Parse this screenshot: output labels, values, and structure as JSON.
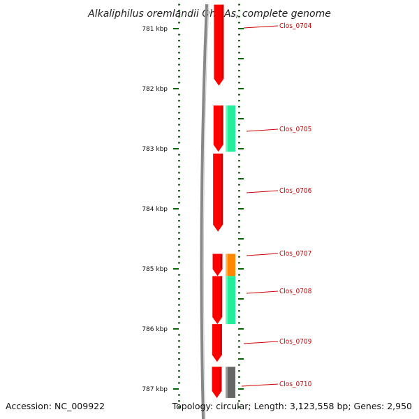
{
  "title": "Alkaliphilus oremlandii OhILAs, complete genome",
  "footer": {
    "accession": "Accession: NC_009922",
    "topology": "Topology: circular; Length: 3,123,558 bp; Genes: 2,950"
  },
  "scale": {
    "unit": "kbp",
    "ticks": [
      {
        "label": "781 kbp",
        "value": 781
      },
      {
        "label": "782 kbp",
        "value": 782
      },
      {
        "label": "783 kbp",
        "value": 783
      },
      {
        "label": "784 kbp",
        "value": 784
      },
      {
        "label": "785 kbp",
        "value": 785
      },
      {
        "label": "786 kbp",
        "value": 786
      },
      {
        "label": "787 kbp",
        "value": 787
      }
    ]
  },
  "colors": {
    "cds": "#ff0000",
    "green_feature": "#22ee99",
    "orange_feature": "#ff8800",
    "gray_feature": "#666666",
    "backbone": "#888888",
    "tick": "#006600",
    "label": "#cc0000"
  },
  "genes": [
    {
      "label": "Clos_0704",
      "start": 780.6,
      "end": 781.95,
      "track": "cds",
      "color": "#ff0000"
    },
    {
      "label": "Clos_0705",
      "start": 782.28,
      "end": 783.05,
      "track": "cds",
      "color": "#ff0000"
    },
    {
      "label": "Clos_0706",
      "start": 783.08,
      "end": 784.38,
      "track": "cds",
      "color": "#ff0000"
    },
    {
      "label": "Clos_0707",
      "start": 784.75,
      "end": 785.12,
      "track": "cds",
      "color": "#ff0000"
    },
    {
      "label": "Clos_0708",
      "start": 785.12,
      "end": 785.92,
      "track": "cds",
      "color": "#ff0000"
    },
    {
      "label": "Clos_0709",
      "start": 785.92,
      "end": 786.55,
      "track": "cds",
      "color": "#ff0000"
    },
    {
      "label": "Clos_0710",
      "start": 786.63,
      "end": 787.15,
      "track": "cds",
      "color": "#ff0000"
    }
  ],
  "features": [
    {
      "start": 782.28,
      "end": 783.05,
      "color": "#22ee99"
    },
    {
      "start": 784.75,
      "end": 785.12,
      "color": "#ff8800"
    },
    {
      "start": 785.12,
      "end": 785.92,
      "color": "#22ee99"
    },
    {
      "start": 786.63,
      "end": 787.15,
      "color": "#666666"
    }
  ]
}
